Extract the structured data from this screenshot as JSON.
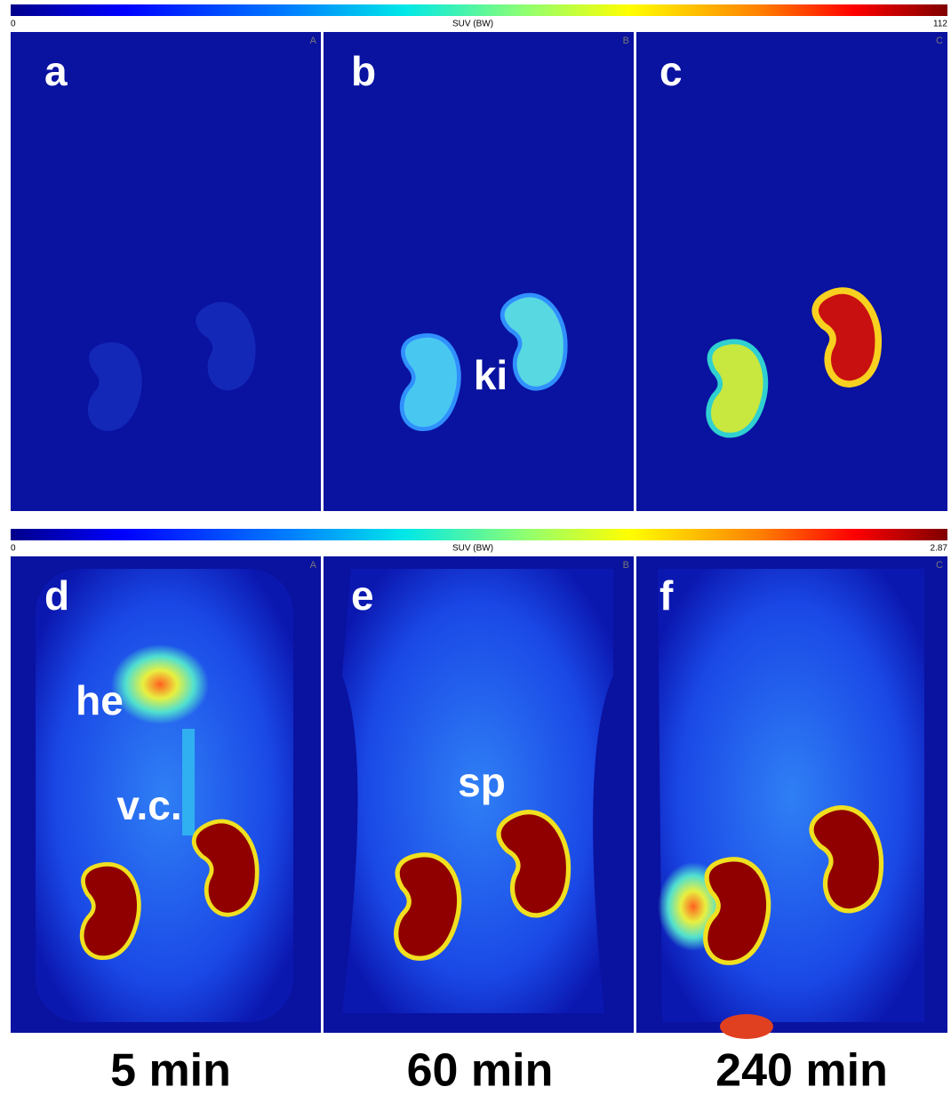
{
  "rows": [
    {
      "colorbar": {
        "min": "0",
        "label": "SUV (BW)",
        "max": "112"
      },
      "panels": [
        {
          "letter": "a",
          "corner": "A"
        },
        {
          "letter": "b",
          "corner": "B",
          "annotation": "ki"
        },
        {
          "letter": "c",
          "corner": "C"
        }
      ]
    },
    {
      "colorbar": {
        "min": "0",
        "label": "SUV (BW)",
        "max": "2.87"
      },
      "panels": [
        {
          "letter": "d",
          "corner": "A",
          "annotations": [
            "he",
            "v.c."
          ]
        },
        {
          "letter": "e",
          "corner": "B",
          "annotation": "sp"
        },
        {
          "letter": "f",
          "corner": "C"
        }
      ]
    }
  ],
  "time_labels": [
    "5 min",
    "60 min",
    "240 min"
  ]
}
